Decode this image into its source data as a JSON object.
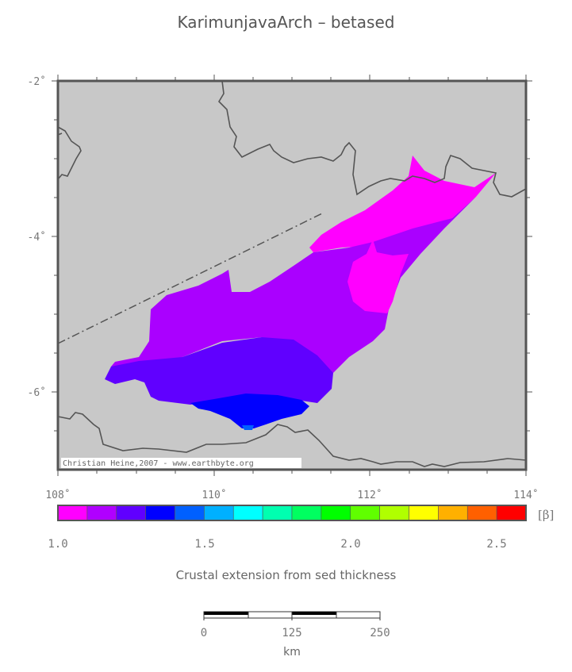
{
  "title": "KarimunjavaArch – betased",
  "map": {
    "lon_ticks": [
      "108˚",
      "110˚",
      "112˚",
      "114˚"
    ],
    "lat_ticks": [
      "-2˚",
      "-4˚",
      "-6˚"
    ],
    "credit": "Christian Heine,2007 - www.earthbyte.org",
    "land_color": "#c8c8c8",
    "coast_color": "#555555"
  },
  "colorbar": {
    "unit_label": "[β]",
    "tick_labels": [
      "1.0",
      "1.5",
      "2.0",
      "2.5"
    ],
    "colors": [
      "#ff00ff",
      "#b000ff",
      "#6000ff",
      "#0000ff",
      "#0060ff",
      "#00b0ff",
      "#00ffff",
      "#00ffb0",
      "#00ff60",
      "#00ff00",
      "#60ff00",
      "#b0ff00",
      "#ffff00",
      "#ffb000",
      "#ff6000",
      "#ff0000"
    ],
    "caption": "Crustal extension from sed thickness"
  },
  "scalebar": {
    "labels": [
      "0",
      "125",
      "250"
    ],
    "unit": "km"
  }
}
